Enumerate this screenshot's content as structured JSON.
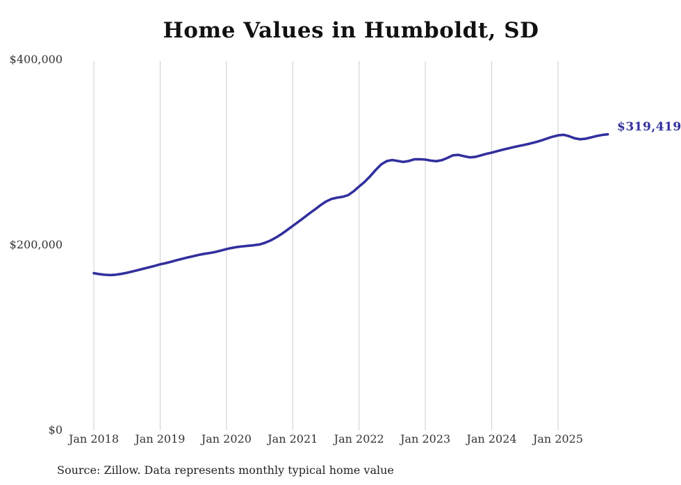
{
  "chart_data": {
    "type": "line",
    "title": "Home Values in Humboldt, SD",
    "source_note": "Source: Zillow. Data represents monthly typical home value",
    "end_label": "$319,419",
    "latest_value": 319419,
    "x_start": "Jan 2018",
    "frequency": "monthly",
    "x_tick_labels": [
      "Jan 2018",
      "Jan 2019",
      "Jan 2020",
      "Jan 2021",
      "Jan 2022",
      "Jan 2023",
      "Jan 2024",
      "Jan 2025"
    ],
    "y_ticks": [
      {
        "label": "$0",
        "value": 0
      },
      {
        "label": "$200,000",
        "value": 200000
      },
      {
        "label": "$400,000",
        "value": 400000
      }
    ],
    "ylim": [
      0,
      400000
    ],
    "grid": "vertical-only",
    "legend": "none",
    "colors": {
      "line": "#322f9e",
      "end_label": "#322f9e",
      "gridline": "#cccccc",
      "axis_text": "#333333",
      "title_text": "#111111",
      "source_text": "#222222",
      "background": "#ffffff"
    },
    "series": [
      {
        "name": "Typical home value",
        "start_month": "2018-01",
        "values": [
          169500,
          168500,
          167800,
          167500,
          167900,
          168800,
          170000,
          171400,
          172900,
          174400,
          175900,
          177400,
          179000,
          180400,
          181900,
          183500,
          185000,
          186500,
          187900,
          189200,
          190400,
          191300,
          192400,
          193900,
          195500,
          196800,
          197800,
          198500,
          199100,
          199700,
          200500,
          202300,
          204900,
          208100,
          211900,
          216100,
          220500,
          224900,
          229400,
          233900,
          238300,
          242800,
          246800,
          249600,
          251000,
          251900,
          253700,
          257800,
          263000,
          268100,
          274100,
          280900,
          286900,
          290500,
          291700,
          290600,
          289600,
          290600,
          292400,
          292500,
          292100,
          291000,
          290400,
          291500,
          294000,
          296800,
          297200,
          295800,
          294500,
          295000,
          296600,
          298300,
          299600,
          301200,
          302800,
          304200,
          305600,
          306900,
          308200,
          309500,
          311000,
          312800,
          314800,
          316800,
          318300,
          318900,
          317400,
          315100,
          314100,
          314700,
          316100,
          317600,
          318700,
          319419
        ]
      }
    ]
  }
}
